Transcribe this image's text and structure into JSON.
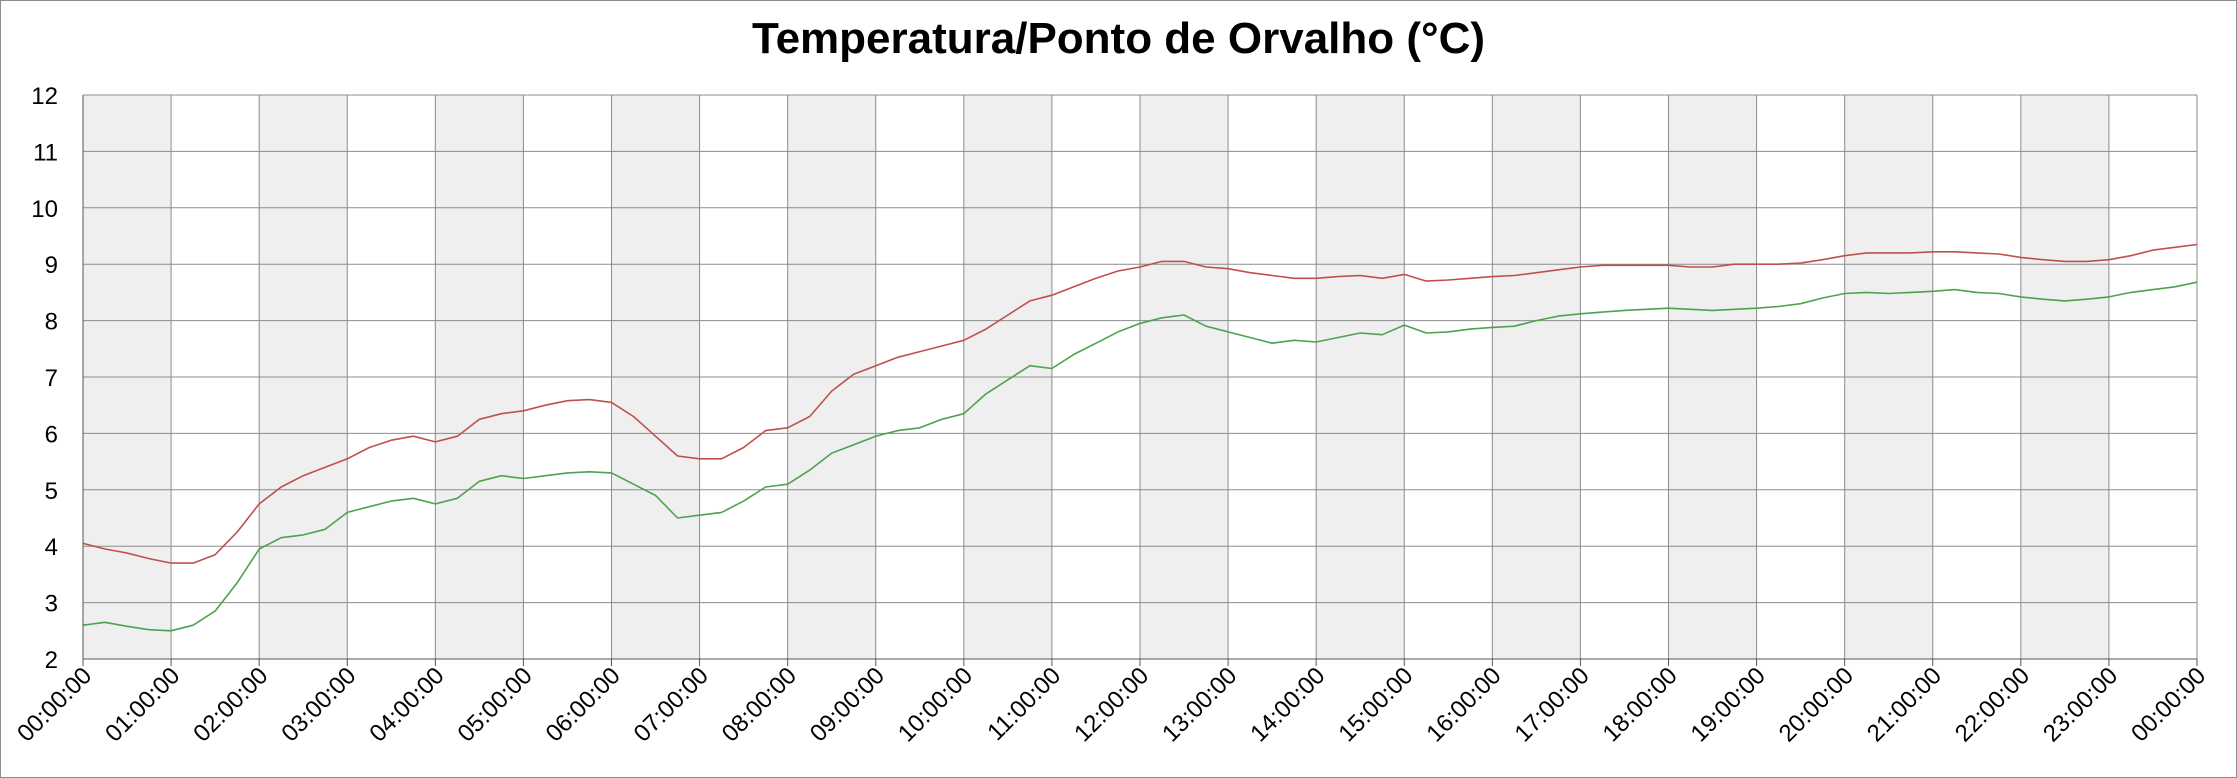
{
  "chart_data": {
    "type": "line",
    "title": "Temperatura/Ponto de Orvalho (°C)",
    "xlabel": "",
    "ylabel": "",
    "ylim": [
      2,
      12
    ],
    "yticks": [
      "2",
      "3",
      "4",
      "5",
      "6",
      "7",
      "8",
      "9",
      "10",
      "11",
      "12"
    ],
    "xticks": [
      "00:00:00",
      "01:00:00",
      "02:00:00",
      "03:00:00",
      "04:00:00",
      "05:00:00",
      "06:00:00",
      "07:00:00",
      "08:00:00",
      "09:00:00",
      "10:00:00",
      "11:00:00",
      "12:00:00",
      "13:00:00",
      "14:00:00",
      "15:00:00",
      "16:00:00",
      "17:00:00",
      "18:00:00",
      "19:00:00",
      "20:00:00",
      "21:00:00",
      "22:00:00",
      "23:00:00",
      "00:00:00"
    ],
    "xlim_hours": [
      0,
      24
    ],
    "grid": true,
    "shaded_alternate_hours": true,
    "legend": "none",
    "series": [
      {
        "color": "#c0504d",
        "x_hours": [
          0,
          0.25,
          0.5,
          0.75,
          1,
          1.25,
          1.5,
          1.75,
          2,
          2.25,
          2.5,
          2.75,
          3,
          3.25,
          3.5,
          3.75,
          4,
          4.25,
          4.5,
          4.75,
          5,
          5.25,
          5.5,
          5.75,
          6,
          6.25,
          6.5,
          6.75,
          7,
          7.25,
          7.5,
          7.75,
          8,
          8.25,
          8.5,
          8.75,
          9,
          9.25,
          9.5,
          9.75,
          10,
          10.25,
          10.5,
          10.75,
          11,
          11.25,
          11.5,
          11.75,
          12,
          12.25,
          12.5,
          12.75,
          13,
          13.25,
          13.5,
          13.75,
          14,
          14.25,
          14.5,
          14.75,
          15,
          15.25,
          15.5,
          15.75,
          16,
          16.25,
          16.5,
          16.75,
          17,
          17.25,
          17.5,
          17.75,
          18,
          18.25,
          18.5,
          18.75,
          19,
          19.25,
          19.5,
          19.75,
          20,
          20.25,
          20.5,
          20.75,
          21,
          21.25,
          21.5,
          21.75,
          22,
          22.25,
          22.5,
          22.75,
          23,
          23.25,
          23.5,
          23.75,
          24
        ],
        "values": [
          4.05,
          3.95,
          3.88,
          3.78,
          3.7,
          3.7,
          3.85,
          4.25,
          4.75,
          5.05,
          5.25,
          5.4,
          5.55,
          5.75,
          5.88,
          5.95,
          5.85,
          5.95,
          6.25,
          6.35,
          6.4,
          6.5,
          6.58,
          6.6,
          6.55,
          6.3,
          5.95,
          5.6,
          5.55,
          5.55,
          5.75,
          6.05,
          6.1,
          6.3,
          6.75,
          7.05,
          7.2,
          7.35,
          7.45,
          7.55,
          7.65,
          7.85,
          8.1,
          8.35,
          8.45,
          8.6,
          8.75,
          8.88,
          8.95,
          9.05,
          9.05,
          8.95,
          8.92,
          8.85,
          8.8,
          8.75,
          8.75,
          8.78,
          8.8,
          8.75,
          8.82,
          8.7,
          8.72,
          8.75,
          8.78,
          8.8,
          8.85,
          8.9,
          8.95,
          8.98,
          8.98,
          8.98,
          8.98,
          8.95,
          8.95,
          9.0,
          9.0,
          9.0,
          9.02,
          9.08,
          9.15,
          9.2,
          9.2,
          9.2,
          9.22,
          9.22,
          9.2,
          9.18,
          9.12,
          9.08,
          9.05,
          9.05,
          9.08,
          9.15,
          9.25,
          9.3,
          9.35
        ]
      },
      {
        "color": "#4ea24e",
        "x_hours": [
          0,
          0.25,
          0.5,
          0.75,
          1,
          1.25,
          1.5,
          1.75,
          2,
          2.25,
          2.5,
          2.75,
          3,
          3.25,
          3.5,
          3.75,
          4,
          4.25,
          4.5,
          4.75,
          5,
          5.25,
          5.5,
          5.75,
          6,
          6.25,
          6.5,
          6.75,
          7,
          7.25,
          7.5,
          7.75,
          8,
          8.25,
          8.5,
          8.75,
          9,
          9.25,
          9.5,
          9.75,
          10,
          10.25,
          10.5,
          10.75,
          11,
          11.25,
          11.5,
          11.75,
          12,
          12.25,
          12.5,
          12.75,
          13,
          13.25,
          13.5,
          13.75,
          14,
          14.25,
          14.5,
          14.75,
          15,
          15.25,
          15.5,
          15.75,
          16,
          16.25,
          16.5,
          16.75,
          17,
          17.25,
          17.5,
          17.75,
          18,
          18.25,
          18.5,
          18.75,
          19,
          19.25,
          19.5,
          19.75,
          20,
          20.25,
          20.5,
          20.75,
          21,
          21.25,
          21.5,
          21.75,
          22,
          22.25,
          22.5,
          22.75,
          23,
          23.25,
          23.5,
          23.75,
          24
        ],
        "values": [
          2.6,
          2.65,
          2.58,
          2.52,
          2.5,
          2.6,
          2.85,
          3.35,
          3.95,
          4.15,
          4.2,
          4.3,
          4.6,
          4.7,
          4.8,
          4.85,
          4.75,
          4.85,
          5.15,
          5.25,
          5.2,
          5.25,
          5.3,
          5.32,
          5.3,
          5.1,
          4.9,
          4.5,
          4.55,
          4.6,
          4.8,
          5.05,
          5.1,
          5.35,
          5.65,
          5.8,
          5.95,
          6.05,
          6.1,
          6.25,
          6.35,
          6.7,
          6.95,
          7.2,
          7.15,
          7.4,
          7.6,
          7.8,
          7.95,
          8.05,
          8.1,
          7.9,
          7.8,
          7.7,
          7.6,
          7.65,
          7.62,
          7.7,
          7.78,
          7.75,
          7.92,
          7.78,
          7.8,
          7.85,
          7.88,
          7.9,
          8.0,
          8.08,
          8.12,
          8.15,
          8.18,
          8.2,
          8.22,
          8.2,
          8.18,
          8.2,
          8.22,
          8.25,
          8.3,
          8.4,
          8.48,
          8.5,
          8.48,
          8.5,
          8.52,
          8.55,
          8.5,
          8.48,
          8.42,
          8.38,
          8.35,
          8.38,
          8.42,
          8.5,
          8.55,
          8.6,
          8.68
        ]
      }
    ]
  }
}
